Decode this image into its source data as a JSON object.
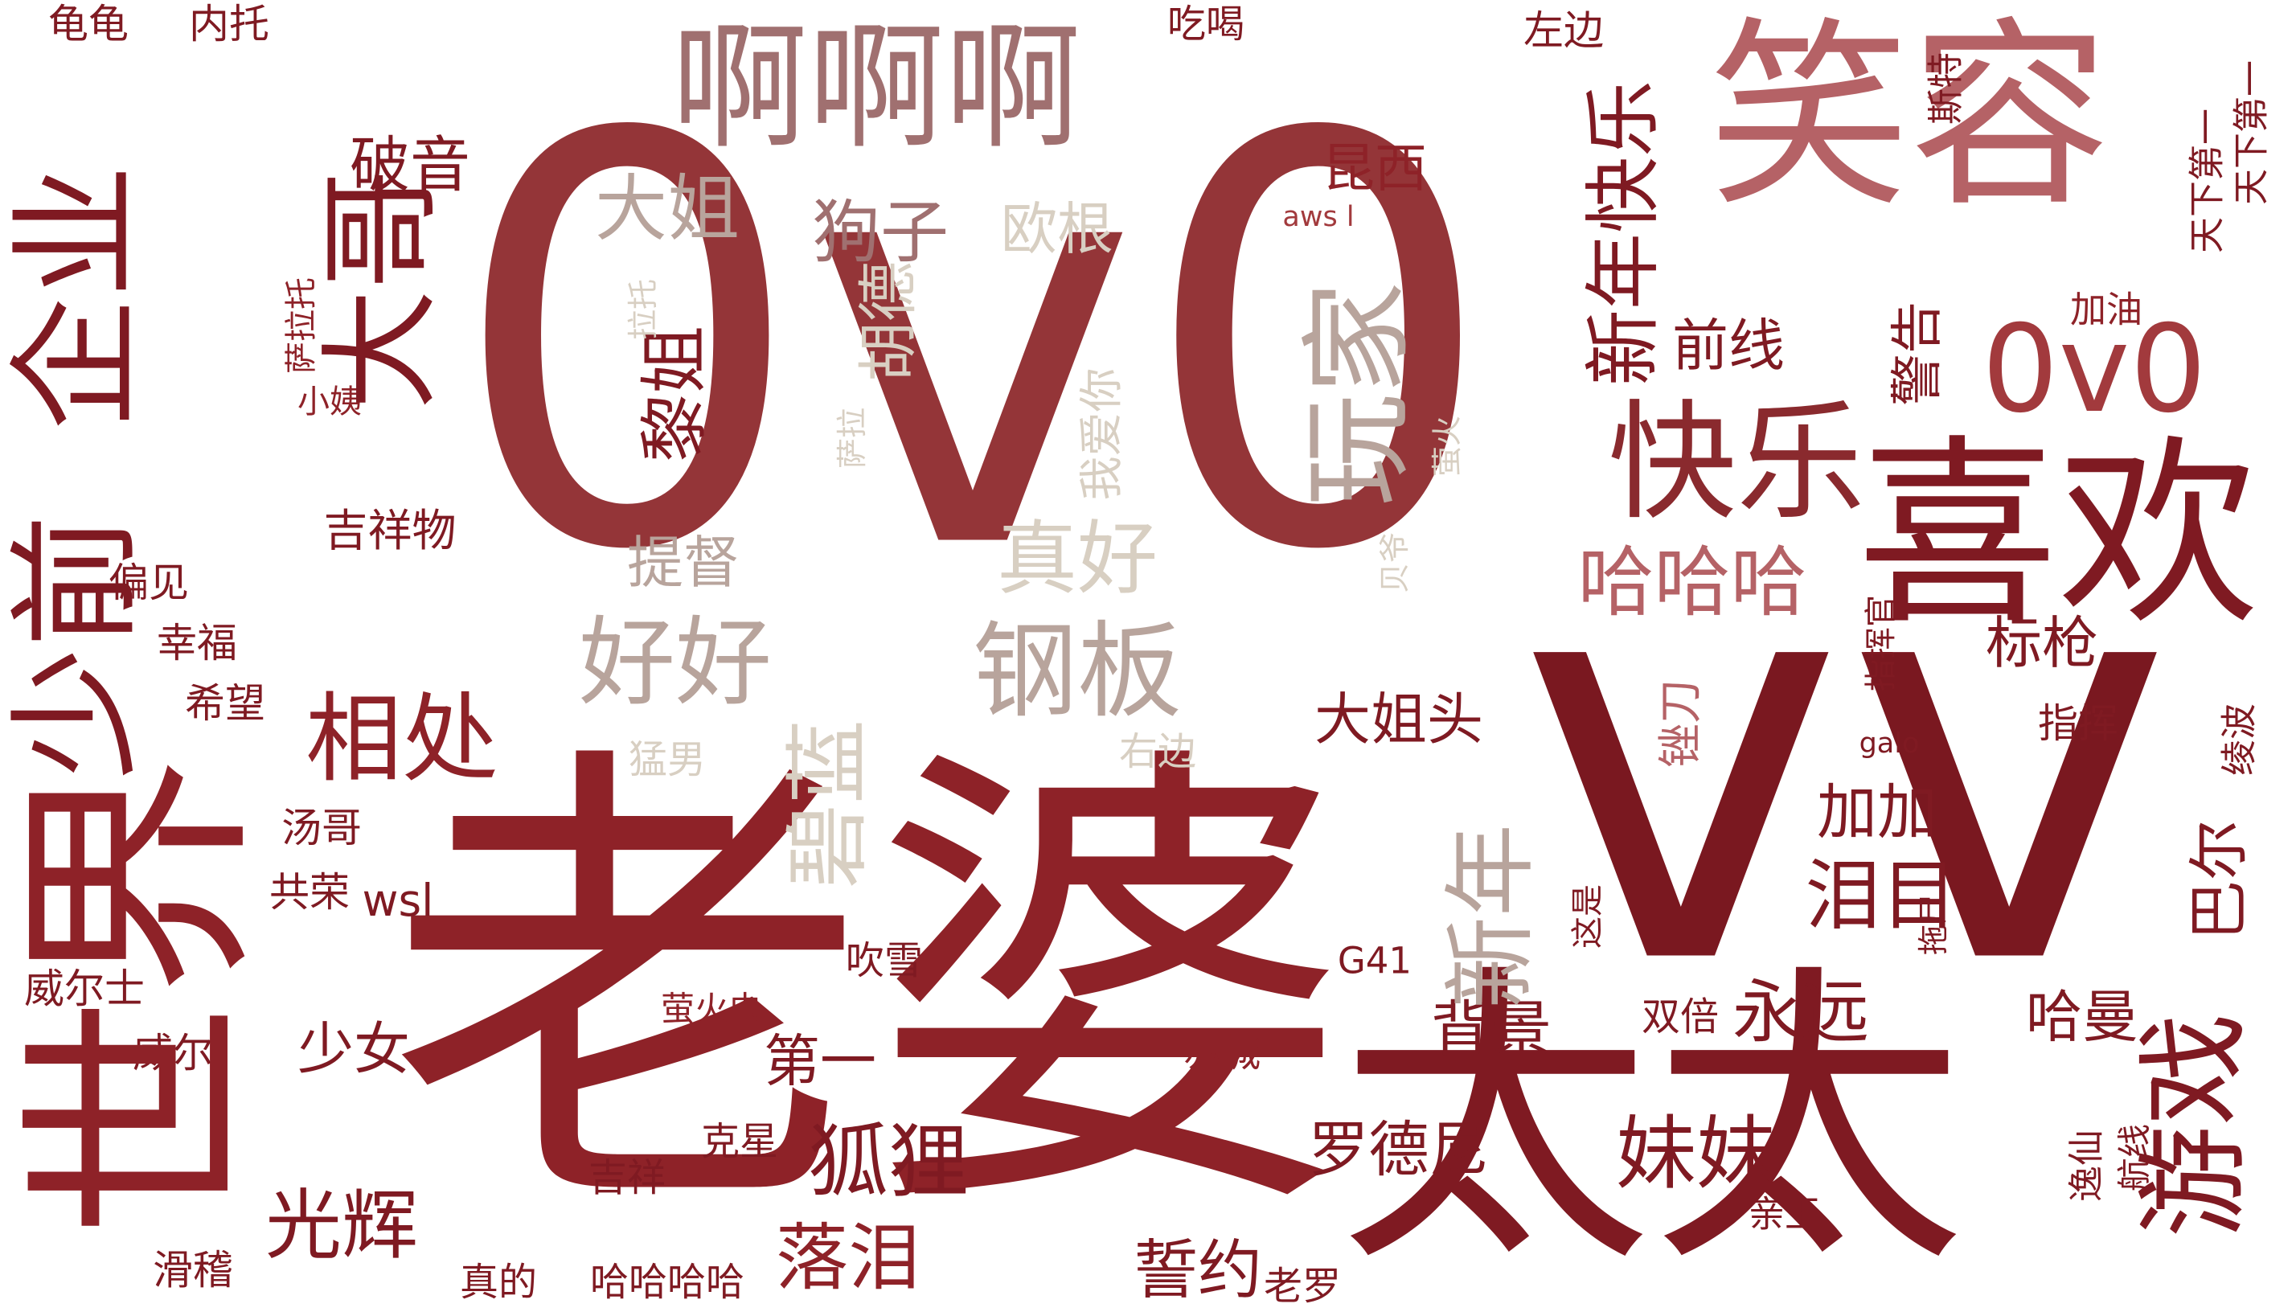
{
  "colors": {
    "background": "#ffffff",
    "dark_red": "#7f1a22",
    "mid_red": "#9a2a2f",
    "rose": "#b56266",
    "brown_rose": "#a07070",
    "taupe": "#b8a49c",
    "beige": "#d8cfc2"
  },
  "words": [
    {
      "id": "w1",
      "text": "0v0"
    },
    {
      "id": "w2",
      "text": "老婆"
    },
    {
      "id": "w3",
      "text": "vv"
    },
    {
      "id": "w4",
      "text": "太太"
    },
    {
      "id": "w5",
      "text": "世界"
    },
    {
      "id": "w6",
      "text": "少前"
    },
    {
      "id": "w7",
      "text": "企业"
    },
    {
      "id": "w8",
      "text": "笑容"
    },
    {
      "id": "w9",
      "text": "啊啊啊"
    },
    {
      "id": "w10",
      "text": "喜欢"
    },
    {
      "id": "w11",
      "text": "0v0"
    },
    {
      "id": "w12",
      "text": "游戏"
    },
    {
      "id": "w13",
      "text": "大哥"
    },
    {
      "id": "w14",
      "text": "玩家"
    },
    {
      "id": "w15",
      "text": "快乐"
    },
    {
      "id": "w16",
      "text": "新年"
    },
    {
      "id": "w17",
      "text": "新年快乐"
    },
    {
      "id": "w18",
      "text": "钢板"
    },
    {
      "id": "w19",
      "text": "好好"
    },
    {
      "id": "w20",
      "text": "碧蓝"
    },
    {
      "id": "w21",
      "text": "相处"
    },
    {
      "id": "w22",
      "text": "狐狸"
    },
    {
      "id": "w23",
      "text": "妹妹"
    },
    {
      "id": "w24",
      "text": "光辉"
    },
    {
      "id": "w25",
      "text": "落泪"
    },
    {
      "id": "w26",
      "text": "哈哈哈"
    },
    {
      "id": "w27",
      "text": "黎姐"
    },
    {
      "id": "w28",
      "text": "真好"
    },
    {
      "id": "w29",
      "text": "大姐"
    },
    {
      "id": "w30",
      "text": "狗子"
    },
    {
      "id": "w31",
      "text": "破音"
    },
    {
      "id": "w32",
      "text": "誓约"
    },
    {
      "id": "w33",
      "text": "永远"
    },
    {
      "id": "w34",
      "text": "泪目"
    },
    {
      "id": "w35",
      "text": "罗德尼"
    },
    {
      "id": "w36",
      "text": "背景"
    },
    {
      "id": "w37",
      "text": "加加"
    },
    {
      "id": "w38",
      "text": "前线"
    },
    {
      "id": "w39",
      "text": "警告"
    },
    {
      "id": "w40",
      "text": "大姐头"
    },
    {
      "id": "w41",
      "text": "标枪"
    },
    {
      "id": "w42",
      "text": "巴尔"
    },
    {
      "id": "w43",
      "text": "哈曼"
    },
    {
      "id": "w44",
      "text": "第一"
    },
    {
      "id": "w45",
      "text": "少女"
    },
    {
      "id": "w46",
      "text": "胡德"
    },
    {
      "id": "w47",
      "text": "欧根"
    },
    {
      "id": "w48",
      "text": "提督"
    },
    {
      "id": "w49",
      "text": "昆西"
    },
    {
      "id": "w50",
      "text": "我爱你"
    },
    {
      "id": "w51",
      "text": "锉刀"
    },
    {
      "id": "w52",
      "text": "吉祥物"
    },
    {
      "id": "w53",
      "text": "wsl"
    },
    {
      "id": "w54",
      "text": "龟龟"
    },
    {
      "id": "w55",
      "text": "内托"
    },
    {
      "id": "w56",
      "text": "吃喝"
    },
    {
      "id": "w57",
      "text": "左边"
    },
    {
      "id": "w58",
      "text": "斯特"
    },
    {
      "id": "w59",
      "text": "天下第一"
    },
    {
      "id": "w60",
      "text": "天下第一"
    },
    {
      "id": "w61",
      "text": "加油"
    },
    {
      "id": "w62",
      "text": "萨拉托"
    },
    {
      "id": "w63",
      "text": "小姨"
    },
    {
      "id": "w64",
      "text": "拉托"
    },
    {
      "id": "w65",
      "text": "萨拉"
    },
    {
      "id": "w66",
      "text": "萤火"
    },
    {
      "id": "w67",
      "text": "aws l"
    },
    {
      "id": "w68",
      "text": "贝爷"
    },
    {
      "id": "w69",
      "text": "指挥官"
    },
    {
      "id": "w70",
      "text": "指挥"
    },
    {
      "id": "w71",
      "text": "绫波"
    },
    {
      "id": "w72",
      "text": "galo"
    },
    {
      "id": "w73",
      "text": "偏见"
    },
    {
      "id": "w74",
      "text": "幸福"
    },
    {
      "id": "w75",
      "text": "希望"
    },
    {
      "id": "w76",
      "text": "汤哥"
    },
    {
      "id": "w77",
      "text": "共荣"
    },
    {
      "id": "w78",
      "text": "威尔士"
    },
    {
      "id": "w79",
      "text": "威尔"
    },
    {
      "id": "w80",
      "text": "滑稽"
    },
    {
      "id": "w81",
      "text": "真的"
    },
    {
      "id": "w82",
      "text": "哈哈哈哈"
    },
    {
      "id": "w83",
      "text": "老罗"
    },
    {
      "id": "w84",
      "text": "吉祥"
    },
    {
      "id": "w85",
      "text": "克星"
    },
    {
      "id": "w86",
      "text": "萤火虫"
    },
    {
      "id": "w87",
      "text": "吹雪"
    },
    {
      "id": "w88",
      "text": "赤城"
    },
    {
      "id": "w89",
      "text": "G41"
    },
    {
      "id": "w90",
      "text": "双倍"
    },
    {
      "id": "w91",
      "text": "亲王"
    },
    {
      "id": "w92",
      "text": "航线"
    },
    {
      "id": "w93",
      "text": "逸仙"
    },
    {
      "id": "w94",
      "text": "这是"
    },
    {
      "id": "w95",
      "text": "拖尸"
    },
    {
      "id": "w96",
      "text": "猛男"
    },
    {
      "id": "w97",
      "text": "右边"
    }
  ]
}
